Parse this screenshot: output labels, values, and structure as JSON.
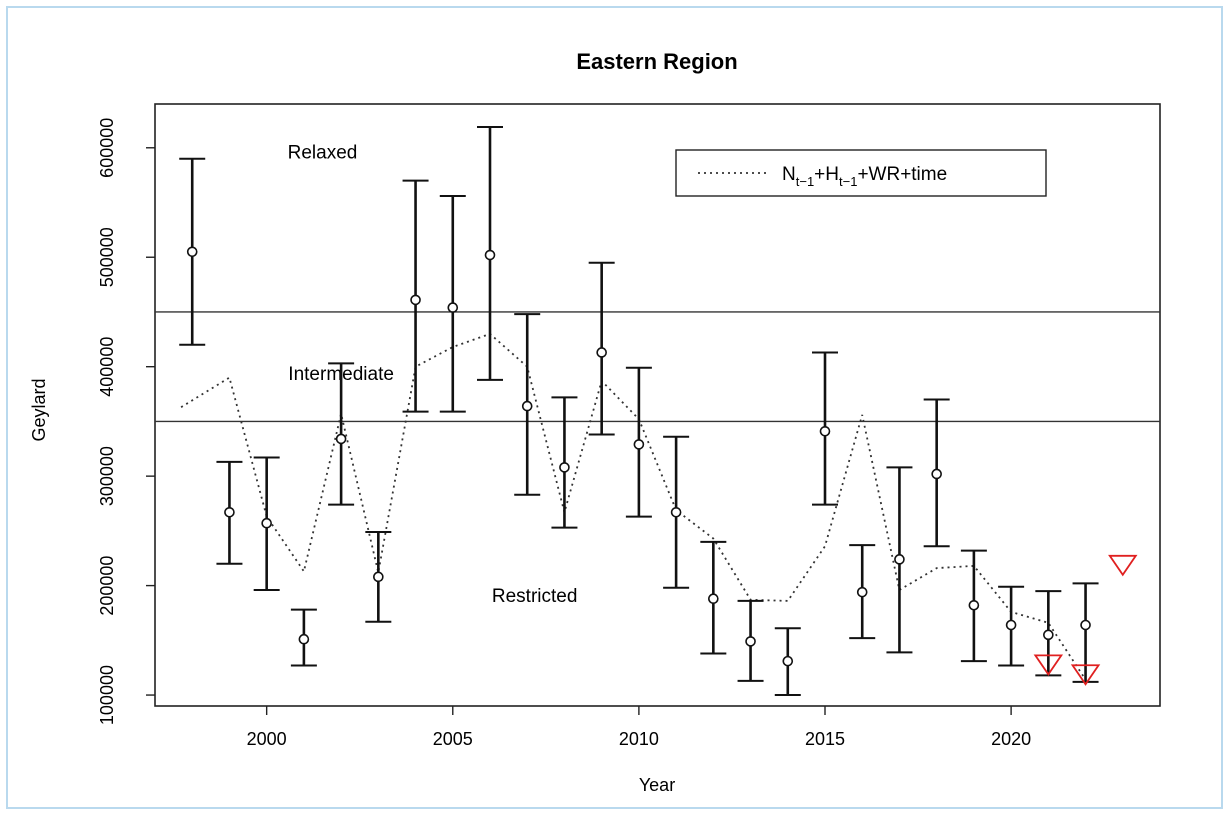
{
  "chart_data": {
    "type": "scatter",
    "title": "Eastern Region",
    "xlabel": "Year",
    "ylabel": "Geylard",
    "xlim": [
      1997,
      2024
    ],
    "ylim": [
      90000,
      640000
    ],
    "x_ticks": [
      2000,
      2005,
      2010,
      2015,
      2020
    ],
    "y_ticks": [
      100000,
      200000,
      300000,
      400000,
      500000,
      600000
    ],
    "y_tick_labels": [
      "100000",
      "200000",
      "300000",
      "400000",
      "500000",
      "600000"
    ],
    "grid": false,
    "legend": {
      "placement": "top-right",
      "entries": [
        {
          "style": "dotted-line",
          "label": {
            "main": "N",
            "sub": "t−1",
            "plus1": "+H",
            "sub2": "t−1",
            "rest": "+WR+time"
          }
        }
      ]
    },
    "thresholds": [
      {
        "y": 450000
      },
      {
        "y": 350000
      }
    ],
    "zones": [
      {
        "label": "Relaxed",
        "x": 2001.5,
        "y": 590000
      },
      {
        "label": "Intermediate",
        "x": 2002,
        "y": 388000
      },
      {
        "label": "Restricted",
        "x": 2007.2,
        "y": 185000
      }
    ],
    "observations": [
      {
        "x": 1998,
        "y": 505000,
        "lo": 420000,
        "hi": 590000
      },
      {
        "x": 1999,
        "y": 267000,
        "lo": 220000,
        "hi": 313000
      },
      {
        "x": 2000,
        "y": 257000,
        "lo": 196000,
        "hi": 317000
      },
      {
        "x": 2001,
        "y": 151000,
        "lo": 127000,
        "hi": 178000
      },
      {
        "x": 2002,
        "y": 334000,
        "lo": 274000,
        "hi": 403000
      },
      {
        "x": 2003,
        "y": 208000,
        "lo": 167000,
        "hi": 249000
      },
      {
        "x": 2004,
        "y": 461000,
        "lo": 359000,
        "hi": 570000
      },
      {
        "x": 2005,
        "y": 454000,
        "lo": 359000,
        "hi": 556000
      },
      {
        "x": 2006,
        "y": 502000,
        "lo": 388000,
        "hi": 619000
      },
      {
        "x": 2007,
        "y": 364000,
        "lo": 283000,
        "hi": 448000
      },
      {
        "x": 2008,
        "y": 308000,
        "lo": 253000,
        "hi": 372000
      },
      {
        "x": 2009,
        "y": 413000,
        "lo": 338000,
        "hi": 495000
      },
      {
        "x": 2010,
        "y": 329000,
        "lo": 263000,
        "hi": 399000
      },
      {
        "x": 2011,
        "y": 267000,
        "lo": 198000,
        "hi": 336000
      },
      {
        "x": 2012,
        "y": 188000,
        "lo": 138000,
        "hi": 240000
      },
      {
        "x": 2013,
        "y": 149000,
        "lo": 113000,
        "hi": 186000
      },
      {
        "x": 2014,
        "y": 131000,
        "lo": 100000,
        "hi": 161000
      },
      {
        "x": 2015,
        "y": 341000,
        "lo": 274000,
        "hi": 413000
      },
      {
        "x": 2016,
        "y": 194000,
        "lo": 152000,
        "hi": 237000
      },
      {
        "x": 2017,
        "y": 224000,
        "lo": 139000,
        "hi": 308000
      },
      {
        "x": 2018,
        "y": 302000,
        "lo": 236000,
        "hi": 370000
      },
      {
        "x": 2019,
        "y": 182000,
        "lo": 131000,
        "hi": 232000
      },
      {
        "x": 2020,
        "y": 164000,
        "lo": 127000,
        "hi": 199000
      },
      {
        "x": 2021,
        "y": 155000,
        "lo": 118000,
        "hi": 195000
      },
      {
        "x": 2022,
        "y": 164000,
        "lo": 112000,
        "hi": 202000
      }
    ],
    "model_fit": {
      "style": "dotted",
      "x": [
        1997.7,
        1999,
        2000,
        2001,
        2002,
        2003,
        2004,
        2005,
        2006,
        2007,
        2008,
        2009,
        2010,
        2011,
        2012,
        2013,
        2014,
        2015,
        2016,
        2017,
        2018,
        2019,
        2020,
        2021,
        2022
      ],
      "y": [
        363000,
        390000,
        263000,
        213000,
        357000,
        212000,
        400000,
        418000,
        430000,
        400000,
        267000,
        387000,
        352000,
        269000,
        243000,
        187000,
        186000,
        236000,
        356000,
        196000,
        216000,
        218000,
        176000,
        166000,
        114000
      ]
    },
    "markers_triangle": {
      "color": "#e02020",
      "points": [
        {
          "x": 2021,
          "y": 128000
        },
        {
          "x": 2022,
          "y": 119000
        },
        {
          "x": 2023,
          "y": 219000
        }
      ]
    }
  }
}
